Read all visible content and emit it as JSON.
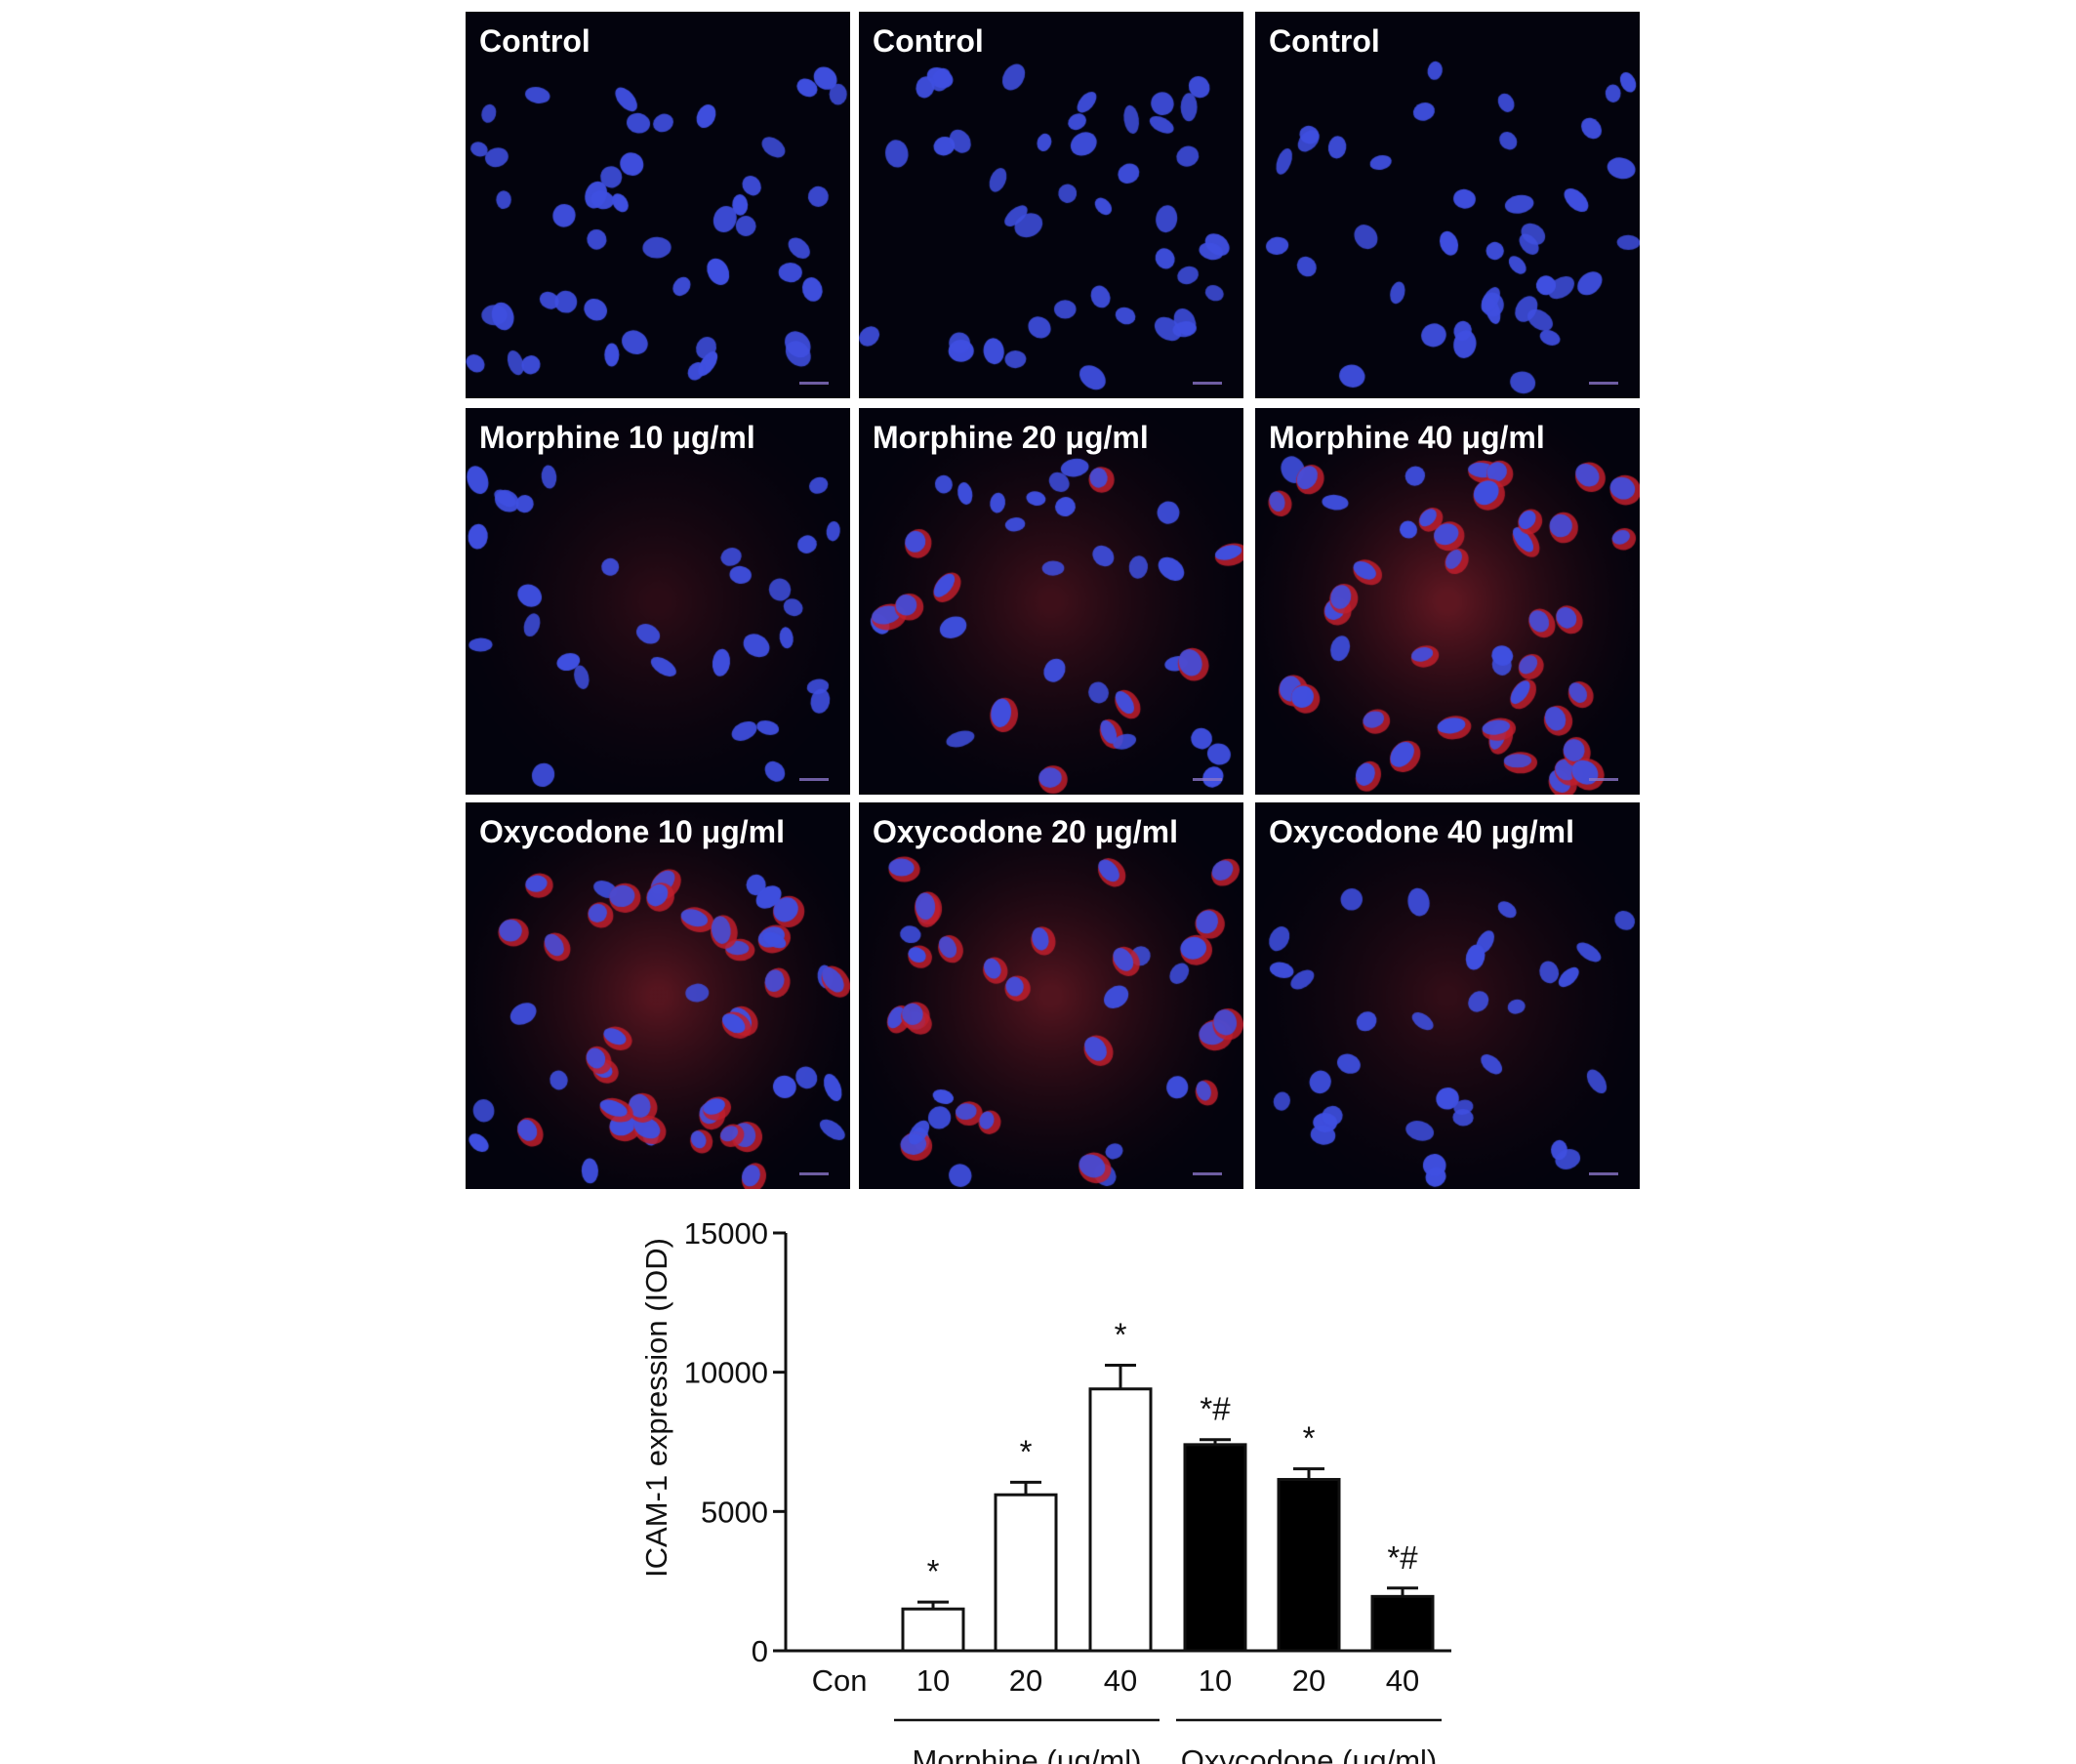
{
  "panels": [
    {
      "label": "Control",
      "red": 0.0,
      "density": 46
    },
    {
      "label": "Control",
      "red": 0.0,
      "density": 42
    },
    {
      "label": "Control",
      "red": 0.0,
      "density": 40
    },
    {
      "label": "Morphine 10 μg/ml",
      "red": 0.22,
      "density": 30
    },
    {
      "label": "Morphine 20 μg/ml",
      "red": 0.45,
      "density": 34
    },
    {
      "label": "Morphine 40 μg/ml",
      "red": 0.85,
      "density": 44
    },
    {
      "label": "Oxycodone 10 μg/ml",
      "red": 0.75,
      "density": 46
    },
    {
      "label": "Oxycodone 20 μg/ml",
      "red": 0.7,
      "density": 36
    },
    {
      "label": "Oxycodone 40 μg/ml",
      "red": 0.3,
      "density": 32
    }
  ],
  "colors": {
    "nucleus": "#3f4fe0",
    "stain": "#c0202a",
    "background": "#03030d"
  },
  "chart_data": {
    "type": "bar",
    "ylabel": "ICAM-1 expression (IOD)",
    "ylim": [
      0,
      15000
    ],
    "yticks": [
      0,
      5000,
      10000,
      15000
    ],
    "categories": [
      "Con",
      "10",
      "20",
      "40",
      "10",
      "20",
      "40"
    ],
    "values": [
      0,
      1500,
      5600,
      9400,
      7400,
      6150,
      1950
    ],
    "errors": [
      0,
      250,
      450,
      850,
      180,
      380,
      300
    ],
    "fills": [
      "#ffffff",
      "#ffffff",
      "#ffffff",
      "#ffffff",
      "#000000",
      "#000000",
      "#000000"
    ],
    "significance": [
      "",
      "*",
      "*",
      "*",
      "*#",
      "*",
      "*#"
    ],
    "groups": [
      {
        "label": "Morphine (μg/ml)",
        "members": [
          1,
          2,
          3
        ]
      },
      {
        "label": "Oxycodone (μg/ml)",
        "members": [
          4,
          5,
          6
        ]
      }
    ],
    "grid": false
  }
}
